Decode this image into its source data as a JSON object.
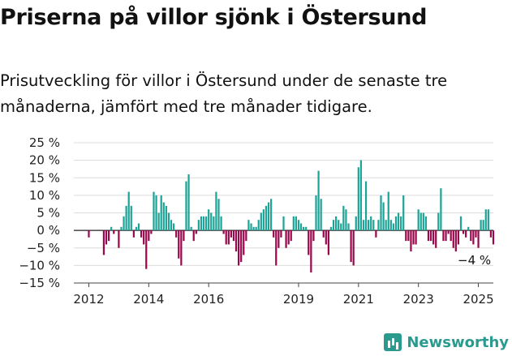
{
  "title": "Priserna på villor sjönk i Östersund",
  "subtitle": "Prisutveckling för villor i Östersund under de senaste tre månaderna, jämfört med tre månader tidigare.",
  "brand": "Newsworthy",
  "colors": {
    "positive": "#1fa396",
    "negative": "#99084c",
    "brand": "#2b9a8e"
  },
  "chart_data": {
    "type": "bar",
    "y_unit": "%",
    "ylim": [
      -15,
      25
    ],
    "y_ticks": [
      "25 %",
      "20 %",
      "15 %",
      "10 %",
      "5 %",
      "0 %",
      "−5 %",
      "−10 %",
      "−15 %"
    ],
    "x_ticks": [
      "2012",
      "2014",
      "2016",
      "2019",
      "2021",
      "2023",
      "2025"
    ],
    "grid": true,
    "annotation": "−4 %",
    "x_range": [
      "2011-07",
      "2025-07"
    ],
    "series": [
      {
        "data": [
          [
            "2012-01",
            -2
          ],
          [
            "2012-07",
            -7
          ],
          [
            "2012-08",
            -4
          ],
          [
            "2012-09",
            -3
          ],
          [
            "2012-10",
            1
          ],
          [
            "2012-11",
            -1
          ],
          [
            "2013-01",
            -5
          ],
          [
            "2013-02",
            1
          ],
          [
            "2013-03",
            4
          ],
          [
            "2013-04",
            7
          ],
          [
            "2013-05",
            11
          ],
          [
            "2013-06",
            7
          ],
          [
            "2013-07",
            -2
          ],
          [
            "2013-08",
            1
          ],
          [
            "2013-09",
            2
          ],
          [
            "2013-10",
            -2
          ],
          [
            "2013-11",
            -4
          ],
          [
            "2013-12",
            -11
          ],
          [
            "2014-01",
            -3
          ],
          [
            "2014-02",
            -1
          ],
          [
            "2014-03",
            11
          ],
          [
            "2014-04",
            10
          ],
          [
            "2014-05",
            5
          ],
          [
            "2014-06",
            10
          ],
          [
            "2014-07",
            8
          ],
          [
            "2014-08",
            7
          ],
          [
            "2014-09",
            5
          ],
          [
            "2014-10",
            3
          ],
          [
            "2014-11",
            2
          ],
          [
            "2014-12",
            -2
          ],
          [
            "2015-01",
            -8
          ],
          [
            "2015-02",
            -10
          ],
          [
            "2015-03",
            -3
          ],
          [
            "2015-04",
            14
          ],
          [
            "2015-05",
            16
          ],
          [
            "2015-06",
            1
          ],
          [
            "2015-07",
            -3
          ],
          [
            "2015-08",
            -1
          ],
          [
            "2015-09",
            3
          ],
          [
            "2015-10",
            4
          ],
          [
            "2015-11",
            4
          ],
          [
            "2015-12",
            4
          ],
          [
            "2016-01",
            6
          ],
          [
            "2016-02",
            5
          ],
          [
            "2016-03",
            4
          ],
          [
            "2016-04",
            11
          ],
          [
            "2016-05",
            9
          ],
          [
            "2016-06",
            4
          ],
          [
            "2016-07",
            -1
          ],
          [
            "2016-08",
            -4
          ],
          [
            "2016-09",
            -4
          ],
          [
            "2016-10",
            -2
          ],
          [
            "2016-11",
            -3
          ],
          [
            "2016-12",
            -6
          ],
          [
            "2017-01",
            -10
          ],
          [
            "2017-02",
            -9
          ],
          [
            "2017-03",
            -7
          ],
          [
            "2017-04",
            -3
          ],
          [
            "2017-05",
            3
          ],
          [
            "2017-06",
            2
          ],
          [
            "2017-07",
            1
          ],
          [
            "2017-08",
            1
          ],
          [
            "2017-09",
            3
          ],
          [
            "2017-10",
            5
          ],
          [
            "2017-11",
            6
          ],
          [
            "2017-12",
            7
          ],
          [
            "2018-01",
            8
          ],
          [
            "2018-02",
            9
          ],
          [
            "2018-03",
            -2
          ],
          [
            "2018-04",
            -10
          ],
          [
            "2018-05",
            -5
          ],
          [
            "2018-06",
            -2
          ],
          [
            "2018-07",
            4
          ],
          [
            "2018-08",
            -5
          ],
          [
            "2018-09",
            -4
          ],
          [
            "2018-10",
            -3
          ],
          [
            "2018-11",
            4
          ],
          [
            "2018-12",
            4
          ],
          [
            "2019-01",
            3
          ],
          [
            "2019-02",
            2
          ],
          [
            "2019-03",
            1
          ],
          [
            "2019-04",
            1
          ],
          [
            "2019-05",
            -7
          ],
          [
            "2019-06",
            -12
          ],
          [
            "2019-07",
            -3
          ],
          [
            "2019-08",
            10
          ],
          [
            "2019-09",
            17
          ],
          [
            "2019-10",
            9
          ],
          [
            "2019-11",
            -2
          ],
          [
            "2019-12",
            -4
          ],
          [
            "2020-01",
            -7
          ],
          [
            "2020-02",
            1
          ],
          [
            "2020-03",
            3
          ],
          [
            "2020-04",
            4
          ],
          [
            "2020-05",
            3
          ],
          [
            "2020-06",
            2
          ],
          [
            "2020-07",
            7
          ],
          [
            "2020-08",
            6
          ],
          [
            "2020-09",
            2
          ],
          [
            "2020-10",
            -9
          ],
          [
            "2020-11",
            -10
          ],
          [
            "2020-12",
            4
          ],
          [
            "2021-01",
            18
          ],
          [
            "2021-02",
            20
          ],
          [
            "2021-03",
            3
          ],
          [
            "2021-04",
            14
          ],
          [
            "2021-05",
            3
          ],
          [
            "2021-06",
            4
          ],
          [
            "2021-07",
            3
          ],
          [
            "2021-08",
            -2
          ],
          [
            "2021-09",
            3
          ],
          [
            "2021-10",
            10
          ],
          [
            "2021-11",
            8
          ],
          [
            "2021-12",
            3
          ],
          [
            "2022-01",
            11
          ],
          [
            "2022-02",
            3
          ],
          [
            "2022-03",
            2
          ],
          [
            "2022-04",
            4
          ],
          [
            "2022-05",
            5
          ],
          [
            "2022-06",
            4
          ],
          [
            "2022-07",
            10
          ],
          [
            "2022-08",
            -3
          ],
          [
            "2022-09",
            -3
          ],
          [
            "2022-10",
            -6
          ],
          [
            "2022-11",
            -4
          ],
          [
            "2022-12",
            -4
          ],
          [
            "2023-01",
            6
          ],
          [
            "2023-02",
            5
          ],
          [
            "2023-03",
            5
          ],
          [
            "2023-04",
            4
          ],
          [
            "2023-05",
            -3
          ],
          [
            "2023-06",
            -3
          ],
          [
            "2023-07",
            -4
          ],
          [
            "2023-08",
            -5
          ],
          [
            "2023-09",
            5
          ],
          [
            "2023-10",
            12
          ],
          [
            "2023-11",
            -3
          ],
          [
            "2023-12",
            -3
          ],
          [
            "2024-01",
            -1
          ],
          [
            "2024-02",
            -3
          ],
          [
            "2024-03",
            -5
          ],
          [
            "2024-04",
            -6
          ],
          [
            "2024-05",
            -4
          ],
          [
            "2024-06",
            4
          ],
          [
            "2024-07",
            -1
          ],
          [
            "2024-08",
            -2
          ],
          [
            "2024-09",
            1
          ],
          [
            "2024-10",
            -3
          ],
          [
            "2024-11",
            -4
          ],
          [
            "2024-12",
            -2
          ],
          [
            "2025-01",
            -5
          ],
          [
            "2025-02",
            3
          ],
          [
            "2025-03",
            3
          ],
          [
            "2025-04",
            6
          ],
          [
            "2025-05",
            6
          ],
          [
            "2025-06",
            -2
          ],
          [
            "2025-07",
            -4
          ]
        ]
      }
    ]
  }
}
